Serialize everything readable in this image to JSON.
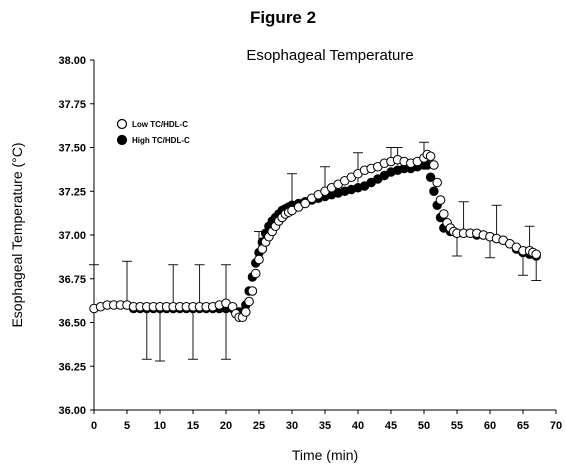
{
  "figure_label": "Figure 2",
  "chart_data": {
    "type": "scatter",
    "title": "Esophageal Temperature",
    "xlabel": "Time (min)",
    "ylabel": "Esophageal Temperature (°C)",
    "xlim": [
      0,
      70
    ],
    "ylim": [
      36.0,
      38.0
    ],
    "x_ticks": [
      0,
      5,
      10,
      15,
      20,
      25,
      30,
      35,
      40,
      45,
      50,
      55,
      60,
      65,
      70
    ],
    "x_tick_labels": [
      "0",
      "5",
      "10",
      "15",
      "20",
      "25",
      "30",
      "35",
      "40",
      "45",
      "50",
      "55",
      "60",
      "65",
      "70"
    ],
    "y_ticks": [
      36.0,
      36.25,
      36.5,
      36.75,
      37.0,
      37.25,
      37.5,
      37.75,
      38.0
    ],
    "y_tick_labels": [
      "36.00",
      "36.25",
      "36.50",
      "36.75",
      "37.00",
      "37.25",
      "37.50",
      "37.75",
      "38.00"
    ],
    "grid": false,
    "legend_position": "top-left",
    "colors": {
      "axis": "#000000",
      "low_marker_fill": "#ffffff",
      "high_marker_fill": "#000000"
    },
    "series": [
      {
        "name": "Low TC/HDL-C",
        "marker": "open-circle",
        "points": [
          [
            0,
            36.58
          ],
          [
            1,
            36.59
          ],
          [
            2,
            36.6
          ],
          [
            3,
            36.6
          ],
          [
            4,
            36.6
          ],
          [
            5,
            36.6
          ],
          [
            6,
            36.59
          ],
          [
            7,
            36.59
          ],
          [
            8,
            36.59
          ],
          [
            9,
            36.59
          ],
          [
            10,
            36.59
          ],
          [
            11,
            36.59
          ],
          [
            12,
            36.59
          ],
          [
            13,
            36.59
          ],
          [
            14,
            36.59
          ],
          [
            15,
            36.59
          ],
          [
            16,
            36.59
          ],
          [
            17,
            36.59
          ],
          [
            18,
            36.59
          ],
          [
            19,
            36.6
          ],
          [
            20,
            36.61
          ],
          [
            21,
            36.59
          ],
          [
            21.5,
            36.55
          ],
          [
            22,
            36.53
          ],
          [
            22.5,
            36.53
          ],
          [
            23,
            36.56
          ],
          [
            23.5,
            36.62
          ],
          [
            24,
            36.68
          ],
          [
            24.5,
            36.78
          ],
          [
            25,
            36.86
          ],
          [
            25.5,
            36.92
          ],
          [
            26,
            36.96
          ],
          [
            26.5,
            36.99
          ],
          [
            27,
            37.02
          ],
          [
            27.5,
            37.05
          ],
          [
            28,
            37.08
          ],
          [
            28.5,
            37.1
          ],
          [
            29,
            37.12
          ],
          [
            29.5,
            37.13
          ],
          [
            30,
            37.14
          ],
          [
            31,
            37.16
          ],
          [
            32,
            37.18
          ],
          [
            33,
            37.21
          ],
          [
            34,
            37.23
          ],
          [
            35,
            37.25
          ],
          [
            36,
            37.27
          ],
          [
            37,
            37.29
          ],
          [
            38,
            37.31
          ],
          [
            39,
            37.33
          ],
          [
            40,
            37.35
          ],
          [
            41,
            37.37
          ],
          [
            42,
            37.38
          ],
          [
            43,
            37.39
          ],
          [
            44,
            37.41
          ],
          [
            45,
            37.42
          ],
          [
            46,
            37.43
          ],
          [
            47,
            37.42
          ],
          [
            48,
            37.41
          ],
          [
            49,
            37.42
          ],
          [
            50,
            37.44
          ],
          [
            50.5,
            37.46
          ],
          [
            51,
            37.45
          ],
          [
            51.5,
            37.4
          ],
          [
            52,
            37.3
          ],
          [
            52.5,
            37.2
          ],
          [
            53,
            37.12
          ],
          [
            53.5,
            37.07
          ],
          [
            54,
            37.04
          ],
          [
            54.5,
            37.02
          ],
          [
            55,
            37.01
          ],
          [
            56,
            37.01
          ],
          [
            57,
            37.01
          ],
          [
            58,
            37.01
          ],
          [
            59,
            37.0
          ],
          [
            60,
            36.99
          ],
          [
            61,
            36.98
          ],
          [
            62,
            36.97
          ],
          [
            63,
            36.95
          ],
          [
            64,
            36.93
          ],
          [
            65,
            36.91
          ],
          [
            66,
            36.91
          ],
          [
            66.5,
            36.9
          ],
          [
            67,
            36.89
          ]
        ]
      },
      {
        "name": "High TC/HDL-C",
        "marker": "filled-circle",
        "points": [
          [
            6,
            36.58
          ],
          [
            7,
            36.58
          ],
          [
            8,
            36.58
          ],
          [
            9,
            36.58
          ],
          [
            10,
            36.58
          ],
          [
            11,
            36.58
          ],
          [
            12,
            36.58
          ],
          [
            13,
            36.58
          ],
          [
            14,
            36.58
          ],
          [
            15,
            36.58
          ],
          [
            16,
            36.58
          ],
          [
            17,
            36.58
          ],
          [
            18,
            36.58
          ],
          [
            19,
            36.58
          ],
          [
            20,
            36.58
          ],
          [
            21,
            36.58
          ],
          [
            22,
            36.56
          ],
          [
            22.5,
            36.56
          ],
          [
            23,
            36.6
          ],
          [
            23.5,
            36.68
          ],
          [
            24,
            36.76
          ],
          [
            24.5,
            36.84
          ],
          [
            25,
            36.9
          ],
          [
            25.5,
            36.96
          ],
          [
            26,
            37.01
          ],
          [
            26.5,
            37.05
          ],
          [
            27,
            37.08
          ],
          [
            27.5,
            37.1
          ],
          [
            28,
            37.12
          ],
          [
            28.5,
            37.14
          ],
          [
            29,
            37.15
          ],
          [
            29.5,
            37.16
          ],
          [
            30,
            37.17
          ],
          [
            31,
            37.18
          ],
          [
            32,
            37.19
          ],
          [
            33,
            37.2
          ],
          [
            34,
            37.21
          ],
          [
            35,
            37.22
          ],
          [
            36,
            37.23
          ],
          [
            37,
            37.24
          ],
          [
            38,
            37.25
          ],
          [
            39,
            37.26
          ],
          [
            40,
            37.27
          ],
          [
            41,
            37.28
          ],
          [
            42,
            37.3
          ],
          [
            43,
            37.32
          ],
          [
            44,
            37.34
          ],
          [
            45,
            37.36
          ],
          [
            46,
            37.37
          ],
          [
            47,
            37.38
          ],
          [
            48,
            37.38
          ],
          [
            49,
            37.39
          ],
          [
            50,
            37.4
          ],
          [
            50.5,
            37.4
          ],
          [
            51,
            37.33
          ],
          [
            51.5,
            37.25
          ],
          [
            52,
            37.17
          ],
          [
            52.5,
            37.1
          ],
          [
            53,
            37.04
          ],
          [
            54,
            37.02
          ],
          [
            55,
            37.01
          ],
          [
            56,
            37.01
          ],
          [
            57,
            37.01
          ],
          [
            58,
            37.0
          ],
          [
            59,
            37.0
          ],
          [
            60,
            36.99
          ],
          [
            61,
            36.98
          ],
          [
            62,
            36.97
          ],
          [
            63,
            36.95
          ],
          [
            64,
            36.92
          ],
          [
            65,
            36.9
          ],
          [
            66,
            36.89
          ],
          [
            67,
            36.88
          ]
        ]
      }
    ],
    "error_bars": [
      [
        0,
        36.58,
        36.83
      ],
      [
        5,
        36.6,
        36.85
      ],
      [
        8,
        36.58,
        36.29
      ],
      [
        10,
        36.58,
        36.28
      ],
      [
        12,
        36.58,
        36.83
      ],
      [
        15,
        36.58,
        36.29
      ],
      [
        16,
        36.58,
        36.83
      ],
      [
        20,
        36.58,
        36.29
      ],
      [
        20,
        36.58,
        36.83
      ],
      [
        25,
        36.88,
        37.02
      ],
      [
        30,
        37.15,
        37.35
      ],
      [
        35,
        37.24,
        37.39
      ],
      [
        40,
        37.3,
        37.47
      ],
      [
        45,
        37.4,
        37.5
      ],
      [
        46,
        37.4,
        37.5
      ],
      [
        50,
        37.42,
        37.53
      ],
      [
        55,
        37.0,
        36.88
      ],
      [
        56,
        37.0,
        37.19
      ],
      [
        60,
        36.98,
        36.87
      ],
      [
        61,
        36.98,
        37.17
      ],
      [
        65,
        36.91,
        36.77
      ],
      [
        66,
        36.91,
        37.05
      ],
      [
        67,
        36.88,
        36.74
      ]
    ]
  }
}
